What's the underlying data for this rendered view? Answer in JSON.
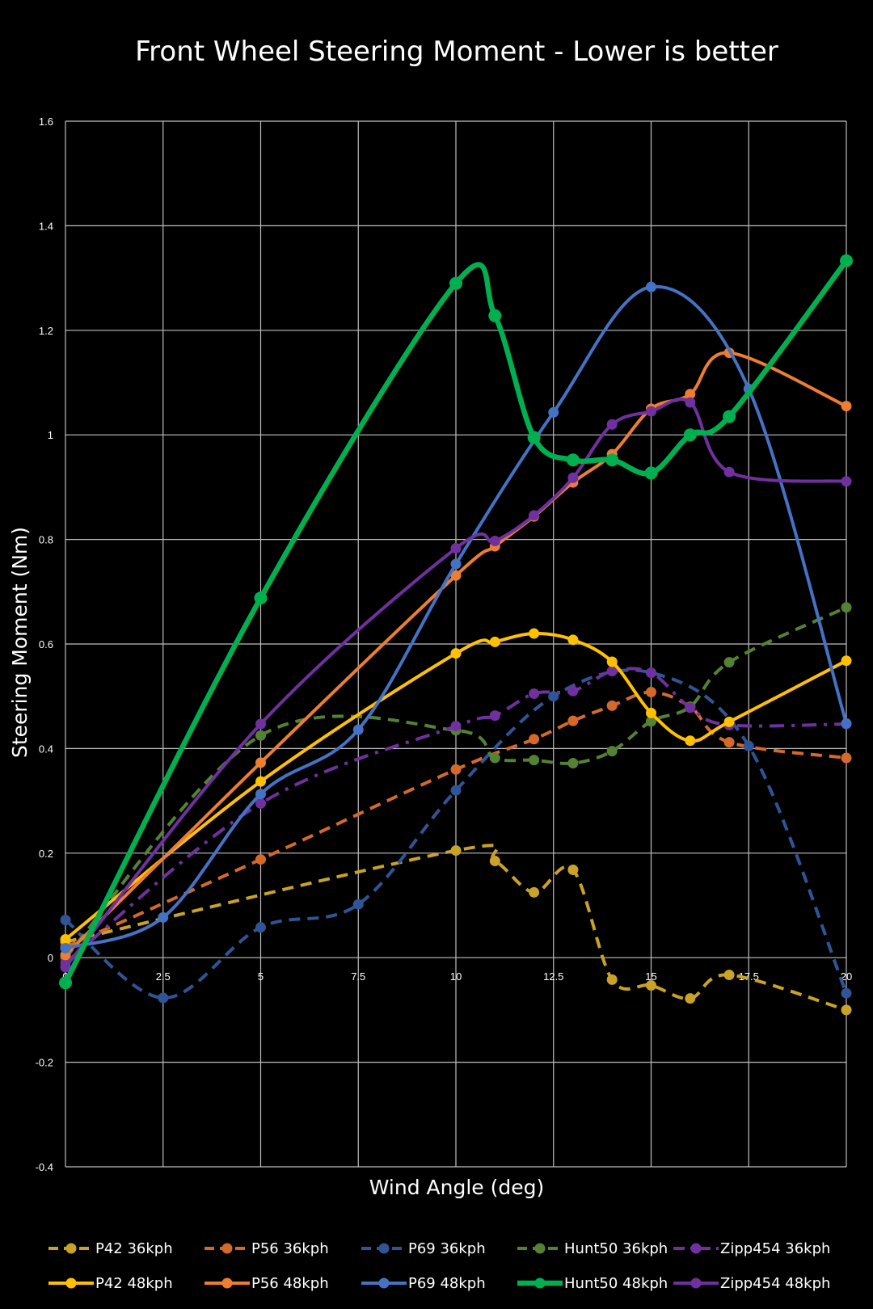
{
  "chart_data": {
    "type": "line",
    "title": "Front Wheel Steering Moment - Lower is better",
    "xlabel": "Wind Angle (deg)",
    "ylabel": "Steering Moment (Nm)",
    "xlim": [
      0,
      20
    ],
    "ylim": [
      -0.4,
      1.6
    ],
    "x_ticks": [
      "0",
      "2.5",
      "5",
      "7.5",
      "10",
      "12.5",
      "15",
      "17.5",
      "20"
    ],
    "y_ticks": [
      "1.6",
      "1.4",
      "1.2",
      "1",
      "0.8",
      "0.6",
      "0.4",
      "0.2",
      "0",
      "-0.2",
      "-0.4"
    ],
    "grid": true,
    "legend_position": "bottom",
    "series": [
      {
        "name": "P42 36kph",
        "color": "#C9A227",
        "dash": "dash",
        "x": [
          0,
          10,
          11,
          12,
          13,
          14,
          15,
          16,
          17,
          20
        ],
        "y": [
          0.03,
          0.205,
          0.185,
          0.125,
          0.168,
          -0.042,
          -0.053,
          -0.078,
          -0.033,
          -0.1
        ]
      },
      {
        "name": "P56 36kph",
        "color": "#D4692A",
        "dash": "dash",
        "x": [
          0,
          5,
          10,
          12,
          13,
          14,
          15,
          16,
          17,
          20
        ],
        "y": [
          0.02,
          0.188,
          0.36,
          0.418,
          0.453,
          0.482,
          0.508,
          0.48,
          0.412,
          0.382
        ]
      },
      {
        "name": "P69 36kph",
        "color": "#2F5597",
        "dash": "dash",
        "x": [
          0,
          2.5,
          5,
          7.5,
          10,
          12.5,
          15,
          17.5,
          20
        ],
        "y": [
          0.072,
          -0.077,
          0.058,
          0.102,
          0.32,
          0.5,
          0.545,
          0.405,
          -0.068
        ]
      },
      {
        "name": "Hunt50 36kph",
        "color": "#548235",
        "dash": "dash",
        "x": [
          0,
          5,
          10,
          11,
          12,
          13,
          14,
          15,
          16,
          17,
          20
        ],
        "y": [
          0.0,
          0.425,
          0.435,
          0.382,
          0.378,
          0.372,
          0.395,
          0.452,
          0.48,
          0.565,
          0.67
        ]
      },
      {
        "name": "Zipp454 36kph",
        "color": "#7030A0",
        "dash": "dashdot",
        "x": [
          0,
          5,
          10,
          11,
          12,
          13,
          14,
          15,
          16,
          17,
          20
        ],
        "y": [
          -0.01,
          0.295,
          0.443,
          0.463,
          0.505,
          0.51,
          0.548,
          0.545,
          0.478,
          0.445,
          0.447
        ]
      },
      {
        "name": "P42 48kph",
        "color": "#FFC000",
        "dash": "solid",
        "x": [
          0,
          5,
          10,
          11,
          12,
          13,
          14,
          15,
          16,
          17,
          20
        ],
        "y": [
          0.035,
          0.337,
          0.582,
          0.604,
          0.62,
          0.608,
          0.566,
          0.468,
          0.415,
          0.451,
          0.568
        ]
      },
      {
        "name": "P56 48kph",
        "color": "#ED7D31",
        "dash": "solid",
        "x": [
          0,
          5,
          10,
          11,
          12,
          13,
          14,
          15,
          16,
          17,
          20
        ],
        "y": [
          0.005,
          0.373,
          0.731,
          0.787,
          0.844,
          0.909,
          0.963,
          1.05,
          1.078,
          1.157,
          1.055
        ]
      },
      {
        "name": "P69 48kph",
        "color": "#4472C4",
        "dash": "solid",
        "x": [
          0,
          2.5,
          5,
          7.5,
          10,
          12.5,
          15,
          17.5,
          20
        ],
        "y": [
          0.018,
          0.077,
          0.313,
          0.436,
          0.753,
          1.043,
          1.283,
          1.088,
          0.448
        ]
      },
      {
        "name": "Hunt50 48kph",
        "color": "#00B050",
        "dash": "solid",
        "x": [
          0,
          5,
          10,
          11,
          12,
          13,
          14,
          15,
          16,
          17,
          20
        ],
        "y": [
          -0.048,
          0.688,
          1.29,
          1.228,
          0.995,
          0.952,
          0.952,
          0.927,
          1.0,
          1.035,
          1.333
        ]
      },
      {
        "name": "Zipp454 48kph",
        "color": "#7030A0",
        "dash": "solid",
        "x": [
          0,
          5,
          10,
          11,
          12,
          13,
          14,
          15,
          16,
          17,
          20
        ],
        "y": [
          -0.018,
          0.447,
          0.783,
          0.797,
          0.846,
          0.918,
          1.02,
          1.045,
          1.062,
          0.929,
          0.911
        ]
      }
    ]
  }
}
